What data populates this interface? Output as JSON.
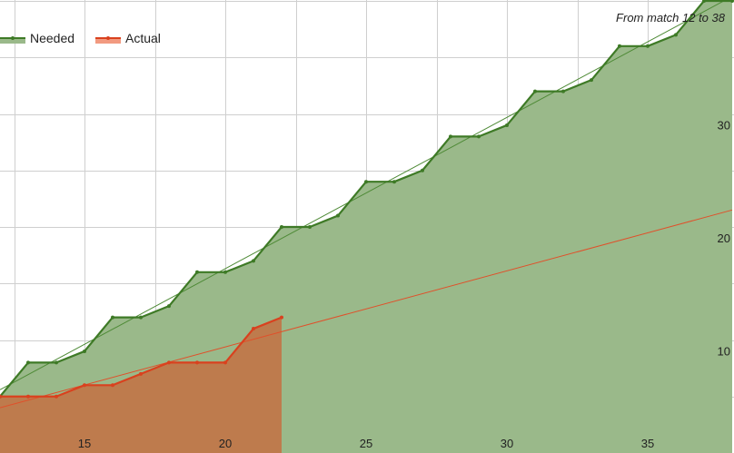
{
  "chart_data": {
    "type": "area",
    "subtitle": "From match 12 to 38",
    "x_ticks": [
      15,
      20,
      25,
      30,
      35
    ],
    "y_ticks": [
      10,
      20,
      30
    ],
    "xlim": [
      12,
      38
    ],
    "ylim": [
      0,
      40
    ],
    "grid": true,
    "legend": "top-left",
    "series": [
      {
        "name": "Needed",
        "line_color": "#3e7a26",
        "fill_color": "#9ab98a",
        "x": [
          12,
          13,
          14,
          15,
          16,
          17,
          18,
          19,
          20,
          21,
          22,
          23,
          24,
          25,
          26,
          27,
          28,
          29,
          30,
          31,
          32,
          33,
          34,
          35,
          36,
          37,
          38
        ],
        "values": [
          5,
          8,
          8,
          9,
          12,
          12,
          13,
          16,
          16,
          17,
          20,
          20,
          21,
          24,
          24,
          25,
          28,
          28,
          29,
          32,
          32,
          33,
          36,
          36,
          37,
          40,
          40
        ]
      },
      {
        "name": "Actual",
        "line_color": "#d9411e",
        "fill_color": "#c0774a",
        "x": [
          12,
          13,
          14,
          15,
          16,
          17,
          18,
          19,
          20,
          21,
          22
        ],
        "values": [
          5,
          5,
          5,
          6,
          6,
          7,
          8,
          8,
          8,
          11,
          12
        ]
      }
    ],
    "trendlines": [
      {
        "series": "Needed",
        "color": "#4e8a36",
        "x": [
          12,
          38
        ],
        "y": [
          5.6,
          40.4
        ]
      },
      {
        "series": "Actual",
        "color": "#e0502a",
        "x": [
          12,
          38
        ],
        "y": [
          4,
          21.5
        ]
      }
    ]
  }
}
